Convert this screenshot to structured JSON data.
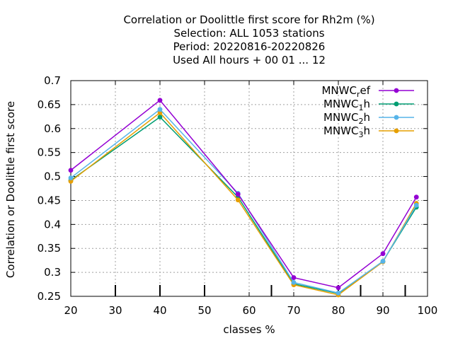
{
  "chart_data": {
    "type": "line",
    "title_lines": [
      "Correlation or Doolittle first score  for Rh2m (%)",
      "Selection: ALL   1053 stations",
      "Period: 20220816-20220826",
      "Used  All hours + 00 01 ... 12"
    ],
    "xlabel": "classes %",
    "ylabel": "Correlation or Doolittle first score",
    "xlim": [
      20,
      100
    ],
    "ylim": [
      0.25,
      0.7
    ],
    "xticks": [
      "20",
      "30",
      "40",
      "50",
      "60",
      "70",
      "80",
      "90",
      "100"
    ],
    "yticks": [
      "0.25",
      "0.3",
      "0.35",
      "0.4",
      "0.45",
      "0.5",
      "0.55",
      "0.6",
      "0.65",
      "0.7"
    ],
    "grid": true,
    "legend_position": "top-right",
    "class_markers": [
      30,
      40,
      50,
      65,
      80,
      85,
      95
    ],
    "x": [
      20,
      40,
      57.5,
      70,
      80,
      90,
      97.5
    ],
    "series": [
      {
        "name_main": "MNWC",
        "name_sub": "r",
        "name_tail": "ef",
        "color": "#9400d3",
        "marker": "filled-circle",
        "values": [
          0.513,
          0.659,
          0.463,
          0.289,
          0.268,
          0.339,
          0.457
        ]
      },
      {
        "name_main": "MNWC",
        "name_sub": "1",
        "name_tail": "h",
        "color": "#009e73",
        "marker": "filled-circle",
        "values": [
          0.492,
          0.624,
          0.457,
          0.276,
          0.256,
          0.323,
          0.436
        ]
      },
      {
        "name_main": "MNWC",
        "name_sub": "2",
        "name_tail": "h",
        "color": "#56b4e9",
        "marker": "filled-circle",
        "values": [
          0.497,
          0.64,
          0.465,
          0.279,
          0.257,
          0.323,
          0.44
        ]
      },
      {
        "name_main": "MNWC",
        "name_sub": "3",
        "name_tail": "h",
        "color": "#e69f00",
        "marker": "filled-circle",
        "values": [
          0.49,
          0.633,
          0.451,
          0.274,
          0.253,
          0.322,
          0.444
        ]
      }
    ]
  }
}
